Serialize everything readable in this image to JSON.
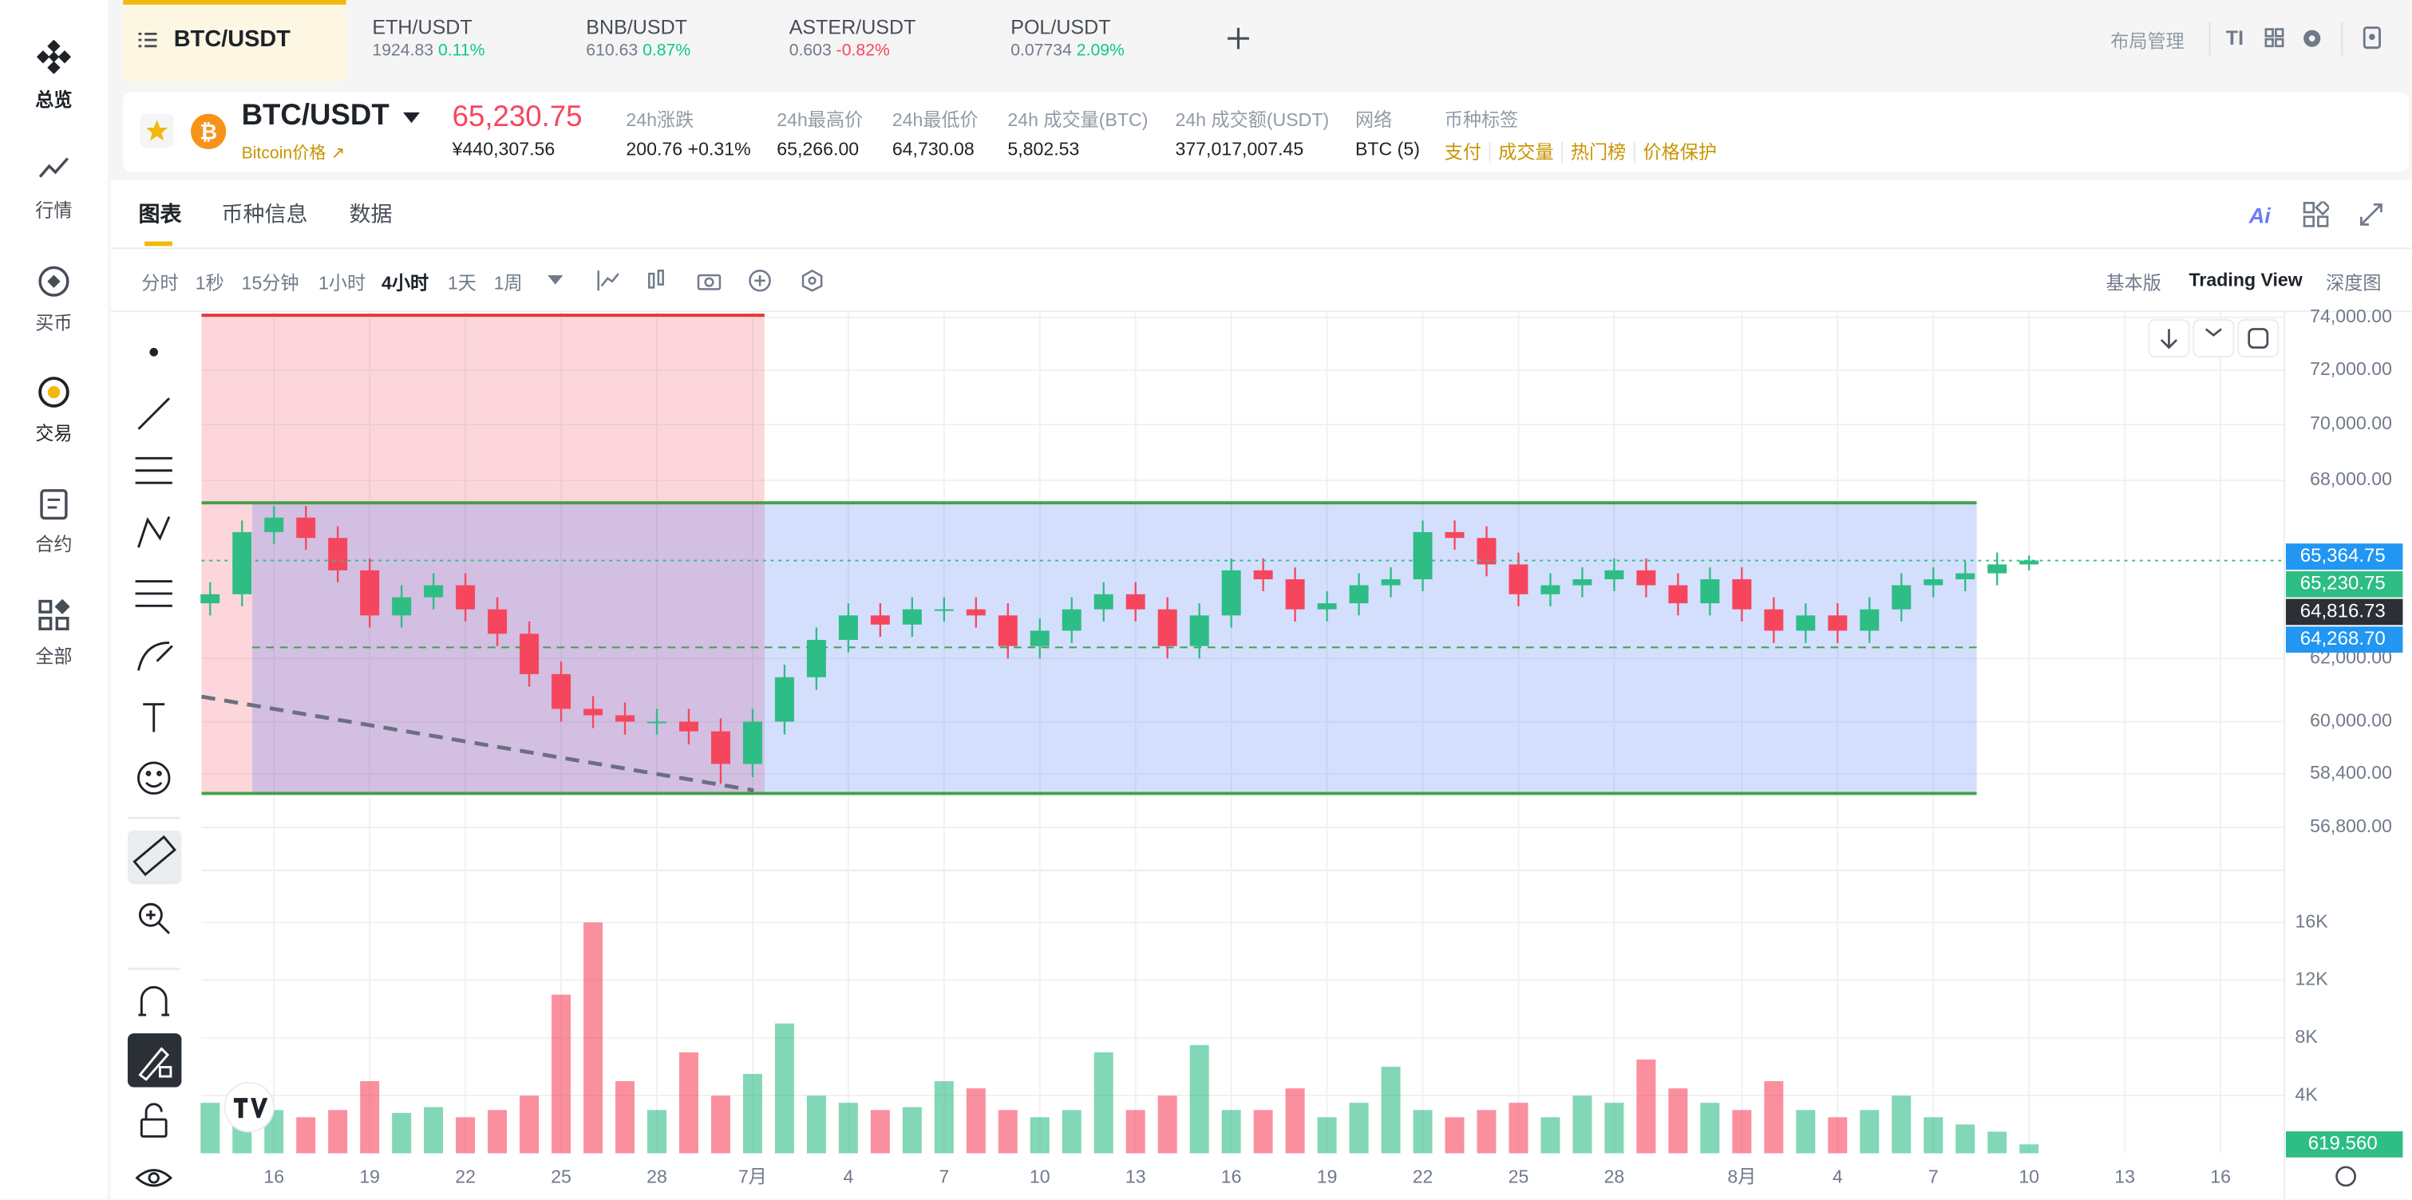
{
  "sidebar": {
    "items": [
      "总览",
      "行情",
      "买币",
      "交易",
      "合约",
      "全部"
    ]
  },
  "tabs": [
    {
      "symbol": "BTC/USDT"
    },
    {
      "symbol": "ETH/USDT",
      "price": "1924.83",
      "change": "0.11%"
    },
    {
      "symbol": "BNB/USDT",
      "price": "610.63",
      "change": "0.87%"
    },
    {
      "symbol": "ASTER/USDT",
      "price": "0.603",
      "change": "-0.82%"
    },
    {
      "symbol": "POL/USDT",
      "price": "0.07734",
      "change": "2.09%"
    }
  ],
  "header_actions": {
    "layout": "布局管理",
    "font": "TI"
  },
  "ticker": {
    "pair": "BTC/USDT",
    "subtitle": "Bitcoin价格",
    "price": "65,230.75",
    "price_cny": "¥440,307.56",
    "stats": [
      {
        "label": "24h涨跌",
        "value": "200.76 +0.31%"
      },
      {
        "label": "24h最高价",
        "value": "65,266.00"
      },
      {
        "label": "24h最低价",
        "value": "64,730.08"
      },
      {
        "label": "24h 成交量(BTC)",
        "value": "5,802.53"
      },
      {
        "label": "24h 成交额(USDT)",
        "value": "377,017,007.45"
      },
      {
        "label": "网络",
        "value": "BTC (5)"
      }
    ],
    "tags_label": "币种标签",
    "tags": [
      "支付",
      "成交量",
      "热门榜",
      "价格保护"
    ]
  },
  "chart_tabs": [
    "图表",
    "币种信息",
    "数据"
  ],
  "ai_label": "Ai",
  "intervals": [
    "分时",
    "1秒",
    "15分钟",
    "1小时",
    "4小时",
    "1天",
    "1周"
  ],
  "views": [
    "基本版",
    "Trading View",
    "深度图"
  ],
  "chart_data": {
    "type": "candlestick",
    "log_scale": true,
    "grid": true,
    "up_color": "#2ebd85",
    "down_color": "#f6465d",
    "x": [
      -2,
      -1,
      0,
      1,
      2,
      3,
      4,
      5,
      6,
      7,
      8,
      9,
      10,
      11,
      12,
      13,
      14,
      15,
      16,
      17,
      18,
      19,
      20,
      21,
      22,
      23,
      24,
      25,
      26,
      27,
      28,
      29,
      30,
      31,
      32,
      33,
      34,
      35,
      36,
      37,
      38,
      39,
      40,
      41,
      42,
      43,
      44,
      45,
      46,
      47,
      48,
      49,
      50,
      51,
      52,
      53,
      54,
      55
    ],
    "open": [
      63800,
      64100,
      66200,
      66700,
      66000,
      64900,
      63400,
      64000,
      64400,
      63600,
      62800,
      61500,
      60400,
      60200,
      60000,
      60000,
      59700,
      58700,
      60000,
      61400,
      62600,
      63400,
      63100,
      63600,
      63600,
      63400,
      62400,
      62900,
      63600,
      64100,
      63600,
      62400,
      63400,
      64900,
      64600,
      63600,
      63800,
      64400,
      64600,
      66200,
      66000,
      65100,
      64100,
      64400,
      64600,
      64900,
      64400,
      63800,
      64600,
      63600,
      62900,
      63400,
      62900,
      63600,
      64400,
      64600,
      64800,
      65100
    ],
    "high": [
      64500,
      66600,
      67100,
      67100,
      66400,
      65300,
      64400,
      64800,
      64800,
      64000,
      63200,
      61900,
      60800,
      60600,
      60400,
      60400,
      60100,
      60400,
      61800,
      63000,
      63800,
      63800,
      64000,
      64000,
      64000,
      63800,
      63300,
      64000,
      64500,
      64500,
      64000,
      63800,
      65300,
      65300,
      65000,
      64200,
      64800,
      65000,
      66600,
      66600,
      66400,
      65500,
      64800,
      65000,
      65300,
      65300,
      64800,
      65000,
      65000,
      64000,
      63800,
      63800,
      64000,
      64800,
      65000,
      65200,
      65500,
      65400
    ],
    "low": [
      63400,
      63700,
      65800,
      65600,
      64500,
      63000,
      63000,
      63600,
      63200,
      62400,
      61100,
      60000,
      59800,
      59600,
      59600,
      59300,
      58100,
      58300,
      59600,
      61000,
      62200,
      62700,
      62700,
      63200,
      63000,
      62000,
      62000,
      62500,
      63200,
      63200,
      62000,
      62000,
      63000,
      64200,
      63200,
      63200,
      63400,
      64000,
      64200,
      65600,
      64700,
      63700,
      63700,
      64000,
      64200,
      64000,
      63400,
      63400,
      63200,
      62500,
      62500,
      62500,
      62500,
      63200,
      64000,
      64200,
      64400,
      64900
    ],
    "close": [
      64100,
      66200,
      66700,
      66000,
      64900,
      63400,
      64000,
      64400,
      63600,
      62800,
      61500,
      60400,
      60200,
      60000,
      60000,
      59700,
      58700,
      60000,
      61400,
      62600,
      63400,
      63100,
      63600,
      63600,
      63400,
      62400,
      62900,
      63600,
      64100,
      63600,
      62400,
      63400,
      64900,
      64600,
      63600,
      63800,
      64400,
      64600,
      66200,
      66000,
      65100,
      64100,
      64400,
      64600,
      64900,
      64400,
      63800,
      64600,
      63600,
      62900,
      63400,
      62900,
      63600,
      64400,
      64600,
      64800,
      65100,
      65230.75
    ],
    "volume": [
      3500,
      4500,
      3000,
      2500,
      3000,
      5000,
      2800,
      3200,
      2500,
      3000,
      4000,
      11000,
      16000,
      5000,
      3000,
      7000,
      4000,
      5500,
      9000,
      4000,
      3500,
      3000,
      3200,
      5000,
      4500,
      3000,
      2500,
      3000,
      7000,
      3000,
      4000,
      7500,
      3000,
      3000,
      4500,
      2500,
      3500,
      6000,
      3000,
      2500,
      3000,
      3500,
      2500,
      4000,
      3500,
      6500,
      4500,
      3500,
      3000,
      5000,
      3000,
      2500,
      3000,
      4000,
      2500,
      2000,
      1500,
      619.56
    ],
    "xlim": [
      -2.27,
      63
    ],
    "ylim": [
      56350,
      74200
    ],
    "yticks": [
      {
        "value": 74000,
        "label": "74,000.00"
      },
      {
        "value": 72000,
        "label": "72,000.00"
      },
      {
        "value": 70000,
        "label": "70,000.00"
      },
      {
        "value": 68000,
        "label": "68,000.00"
      },
      {
        "value": 62000,
        "label": "62,000.00"
      },
      {
        "value": 60000,
        "label": "60,000.00"
      },
      {
        "value": 58400,
        "label": "58,400.00"
      },
      {
        "value": 56800,
        "label": "56,800.00"
      }
    ],
    "xticks": [
      {
        "value": 0,
        "label": "16"
      },
      {
        "value": 3,
        "label": "19"
      },
      {
        "value": 6,
        "label": "22"
      },
      {
        "value": 9,
        "label": "25"
      },
      {
        "value": 12,
        "label": "28"
      },
      {
        "value": 15,
        "label": "7月"
      },
      {
        "value": 18,
        "label": "4"
      },
      {
        "value": 21,
        "label": "7"
      },
      {
        "value": 24,
        "label": "10"
      },
      {
        "value": 27,
        "label": "13"
      },
      {
        "value": 30,
        "label": "16"
      },
      {
        "value": 33,
        "label": "19"
      },
      {
        "value": 36,
        "label": "22"
      },
      {
        "value": 39,
        "label": "25"
      },
      {
        "value": 42,
        "label": "28"
      },
      {
        "value": 46,
        "label": "8月"
      },
      {
        "value": 49,
        "label": "4"
      },
      {
        "value": 52,
        "label": "7"
      },
      {
        "value": 55,
        "label": "10"
      },
      {
        "value": 58,
        "label": "13"
      },
      {
        "value": 61,
        "label": "16"
      }
    ],
    "volume_ylim": [
      0,
      17800
    ],
    "volume_ticks": [
      {
        "value": 4000,
        "label": "4K"
      },
      {
        "value": 8000,
        "label": "8K"
      },
      {
        "value": 12000,
        "label": "12K"
      },
      {
        "value": 16000,
        "label": "16K"
      }
    ],
    "price_markers": [
      {
        "value": 65364.75,
        "label": "65,364.75",
        "color": "#2196f3"
      },
      {
        "value": 65230.75,
        "label": "65,230.75",
        "color": "#2ebd85"
      },
      {
        "value": 64816.73,
        "label": "64,816.73",
        "color": "#2b2f36"
      },
      {
        "value": 64268.7,
        "label": "64,268.70",
        "color": "#2196f3"
      }
    ],
    "volume_marker": {
      "value": 619.56,
      "label": "619.560",
      "color": "#2ebd85"
    }
  }
}
